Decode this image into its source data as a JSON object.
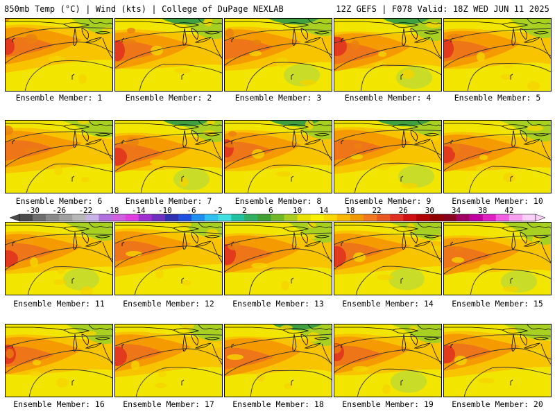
{
  "header": {
    "left": "850mb Temp (°C) | Wind (kts) | College of DuPage NEXLAB",
    "right": "12Z GEFS | F078 Valid: 18Z WED JUN 11 2025"
  },
  "panels": [
    {
      "caption": "Ensemble Member: 1"
    },
    {
      "caption": "Ensemble Member: 2"
    },
    {
      "caption": "Ensemble Member: 3"
    },
    {
      "caption": "Ensemble Member: 4"
    },
    {
      "caption": "Ensemble Member: 5"
    },
    {
      "caption": "Ensemble Member: 6"
    },
    {
      "caption": "Ensemble Member: 7"
    },
    {
      "caption": "Ensemble Member: 8"
    },
    {
      "caption": "Ensemble Member: 9"
    },
    {
      "caption": "Ensemble Member: 10"
    },
    {
      "caption": "Ensemble Member: 11"
    },
    {
      "caption": "Ensemble Member: 12"
    },
    {
      "caption": "Ensemble Member: 13"
    },
    {
      "caption": "Ensemble Member: 14"
    },
    {
      "caption": "Ensemble Member: 15"
    },
    {
      "caption": "Ensemble Member: 16"
    },
    {
      "caption": "Ensemble Member: 17"
    },
    {
      "caption": "Ensemble Member: 18"
    },
    {
      "caption": "Ensemble Member: 19"
    },
    {
      "caption": "Ensemble Member: 20"
    }
  ],
  "colorbar": {
    "labels": [
      "-30",
      "-26",
      "-22",
      "-18",
      "-14",
      "-10",
      "-6",
      "-2",
      "2",
      "6",
      "10",
      "14",
      "18",
      "22",
      "26",
      "30",
      "34",
      "38",
      "42"
    ],
    "colors": [
      "#4a4a4a",
      "#6e6e6e",
      "#8a8a8a",
      "#a0a0a0",
      "#b8b8b8",
      "#c8b4e6",
      "#b070e0",
      "#d060e0",
      "#e040e0",
      "#a030d0",
      "#7030c0",
      "#3030b0",
      "#2050e0",
      "#2090f0",
      "#30c0f0",
      "#40e0e0",
      "#20c0a0",
      "#30b060",
      "#40a030",
      "#70b828",
      "#a8cc20",
      "#e8e000",
      "#f8f000",
      "#f8d800",
      "#f8b800",
      "#f09800",
      "#f07820",
      "#e85820",
      "#e03020",
      "#d01010",
      "#b00000",
      "#900000",
      "#880020",
      "#a00060",
      "#c000a0",
      "#e020c0",
      "#f060e0",
      "#f8a0f0",
      "#f8d0f8"
    ]
  }
}
